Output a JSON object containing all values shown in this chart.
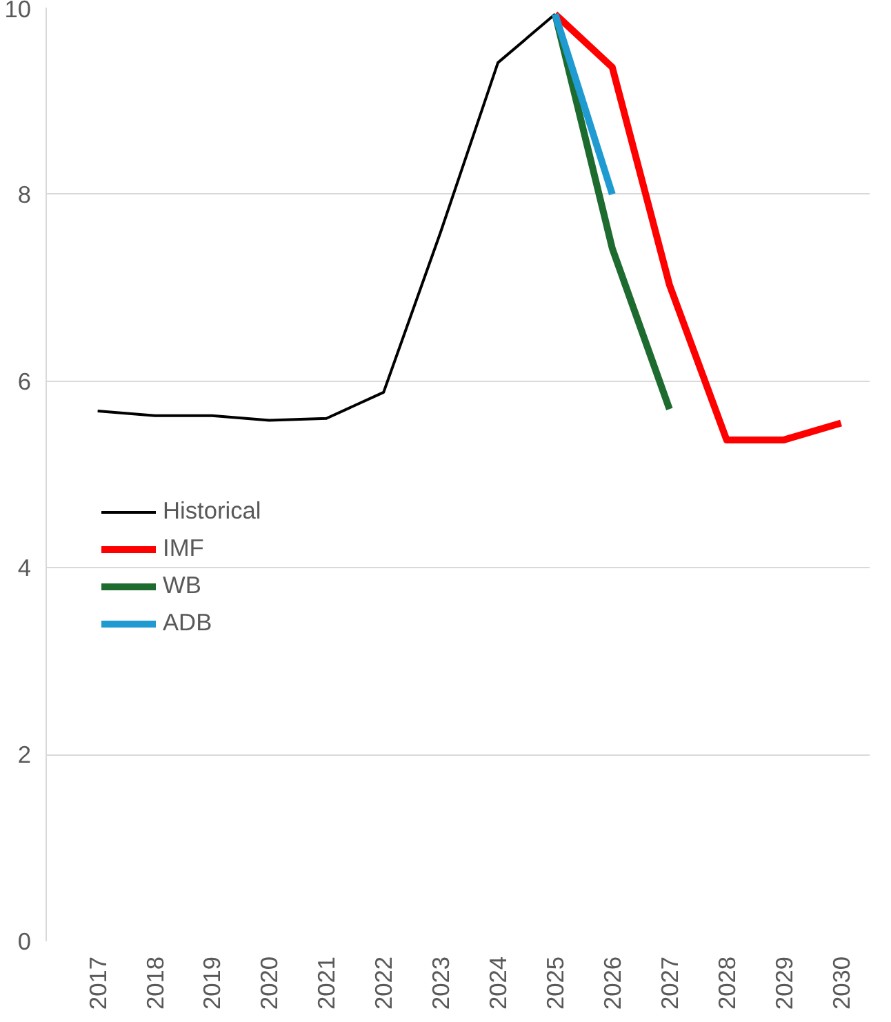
{
  "chart_data": {
    "type": "line",
    "categories": [
      "2017",
      "2018",
      "2019",
      "2020",
      "2021",
      "2022",
      "2023",
      "2024",
      "2025",
      "2026",
      "2027",
      "2028",
      "2029",
      "2030"
    ],
    "series": [
      {
        "name": "Historical",
        "color": "#000000",
        "values": [
          5.68,
          5.63,
          5.63,
          5.58,
          5.6,
          5.88,
          7.6,
          9.41,
          9.93,
          null,
          null,
          null,
          null,
          null
        ]
      },
      {
        "name": "IMF",
        "color": "#ff0000",
        "values": [
          null,
          null,
          null,
          null,
          null,
          null,
          null,
          null,
          9.93,
          9.36,
          7.03,
          5.37,
          5.37,
          5.55
        ]
      },
      {
        "name": "WB",
        "color": "#1e6b30",
        "values": [
          null,
          null,
          null,
          null,
          null,
          null,
          null,
          null,
          9.93,
          7.42,
          5.7,
          null,
          null,
          null
        ]
      },
      {
        "name": "ADB",
        "color": "#1f9bd1",
        "values": [
          null,
          null,
          null,
          null,
          null,
          null,
          null,
          null,
          9.93,
          8.0,
          null,
          null,
          null,
          null
        ]
      }
    ],
    "ylim": [
      0,
      10
    ],
    "yticks": [
      0,
      2,
      4,
      6,
      8,
      10
    ],
    "grid": "y",
    "legend": "left"
  }
}
